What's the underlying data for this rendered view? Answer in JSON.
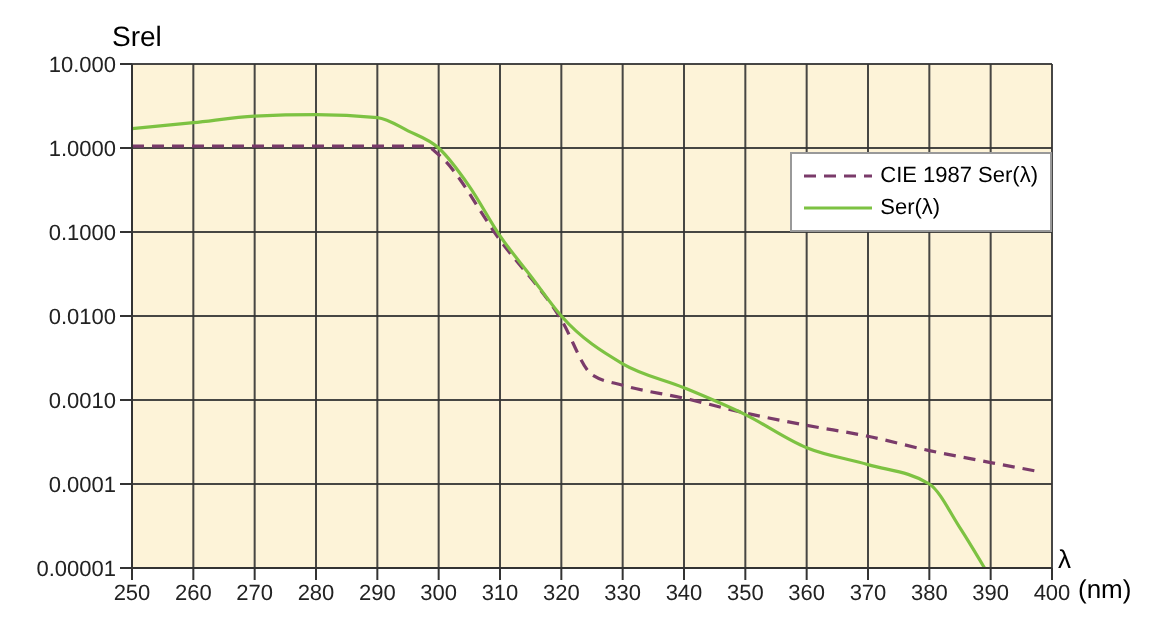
{
  "chart_data": {
    "type": "line",
    "ylabel": "Srel",
    "xlabel": "λ (nm)",
    "log": "y",
    "grid": true,
    "legend": "top right",
    "marker": "none",
    "xlim": [
      250,
      400
    ],
    "xticks": [
      250,
      260,
      270,
      280,
      290,
      300,
      310,
      320,
      330,
      340,
      350,
      360,
      370,
      380,
      390,
      400
    ],
    "ylim": [
      1e-05,
      10
    ],
    "yticks": [
      {
        "value": 10,
        "label": "10.000"
      },
      {
        "value": 1,
        "label": "1.0000"
      },
      {
        "value": 0.1,
        "label": "0.1000"
      },
      {
        "value": 0.01,
        "label": "0.0100"
      },
      {
        "value": 0.001,
        "label": "0.0010"
      },
      {
        "value": 0.0001,
        "label": "0.0001"
      },
      {
        "value": 1e-05,
        "label": "0.00001"
      }
    ],
    "series": [
      {
        "name": "CIE 1987 Ser(λ)",
        "color": "#7a3b6a",
        "line_style": "dashed",
        "x": [
          250,
          260,
          270,
          280,
          290,
          298,
          300,
          310,
          320,
          325,
          330,
          340,
          350,
          360,
          370,
          380,
          390,
          398
        ],
        "values": [
          1.05,
          1.05,
          1.05,
          1.05,
          1.05,
          1.05,
          0.83,
          0.08,
          0.009,
          0.002,
          0.0015,
          0.00105,
          0.0007,
          0.0005,
          0.00037,
          0.00025,
          0.00018,
          0.00014
        ]
      },
      {
        "name": "Ser(λ)",
        "color": "#7dc242",
        "line_style": "solid",
        "x": [
          250,
          260,
          270,
          280,
          290,
          295,
          300,
          305,
          310,
          315,
          320,
          330,
          340,
          350,
          360,
          370,
          380,
          385,
          389
        ],
        "values": [
          1.7,
          2.0,
          2.4,
          2.5,
          2.3,
          1.6,
          1.0,
          0.35,
          0.09,
          0.03,
          0.01,
          0.0027,
          0.0014,
          0.00067,
          0.00027,
          0.00017,
          0.0001,
          3e-05,
          1e-05
        ]
      }
    ]
  }
}
